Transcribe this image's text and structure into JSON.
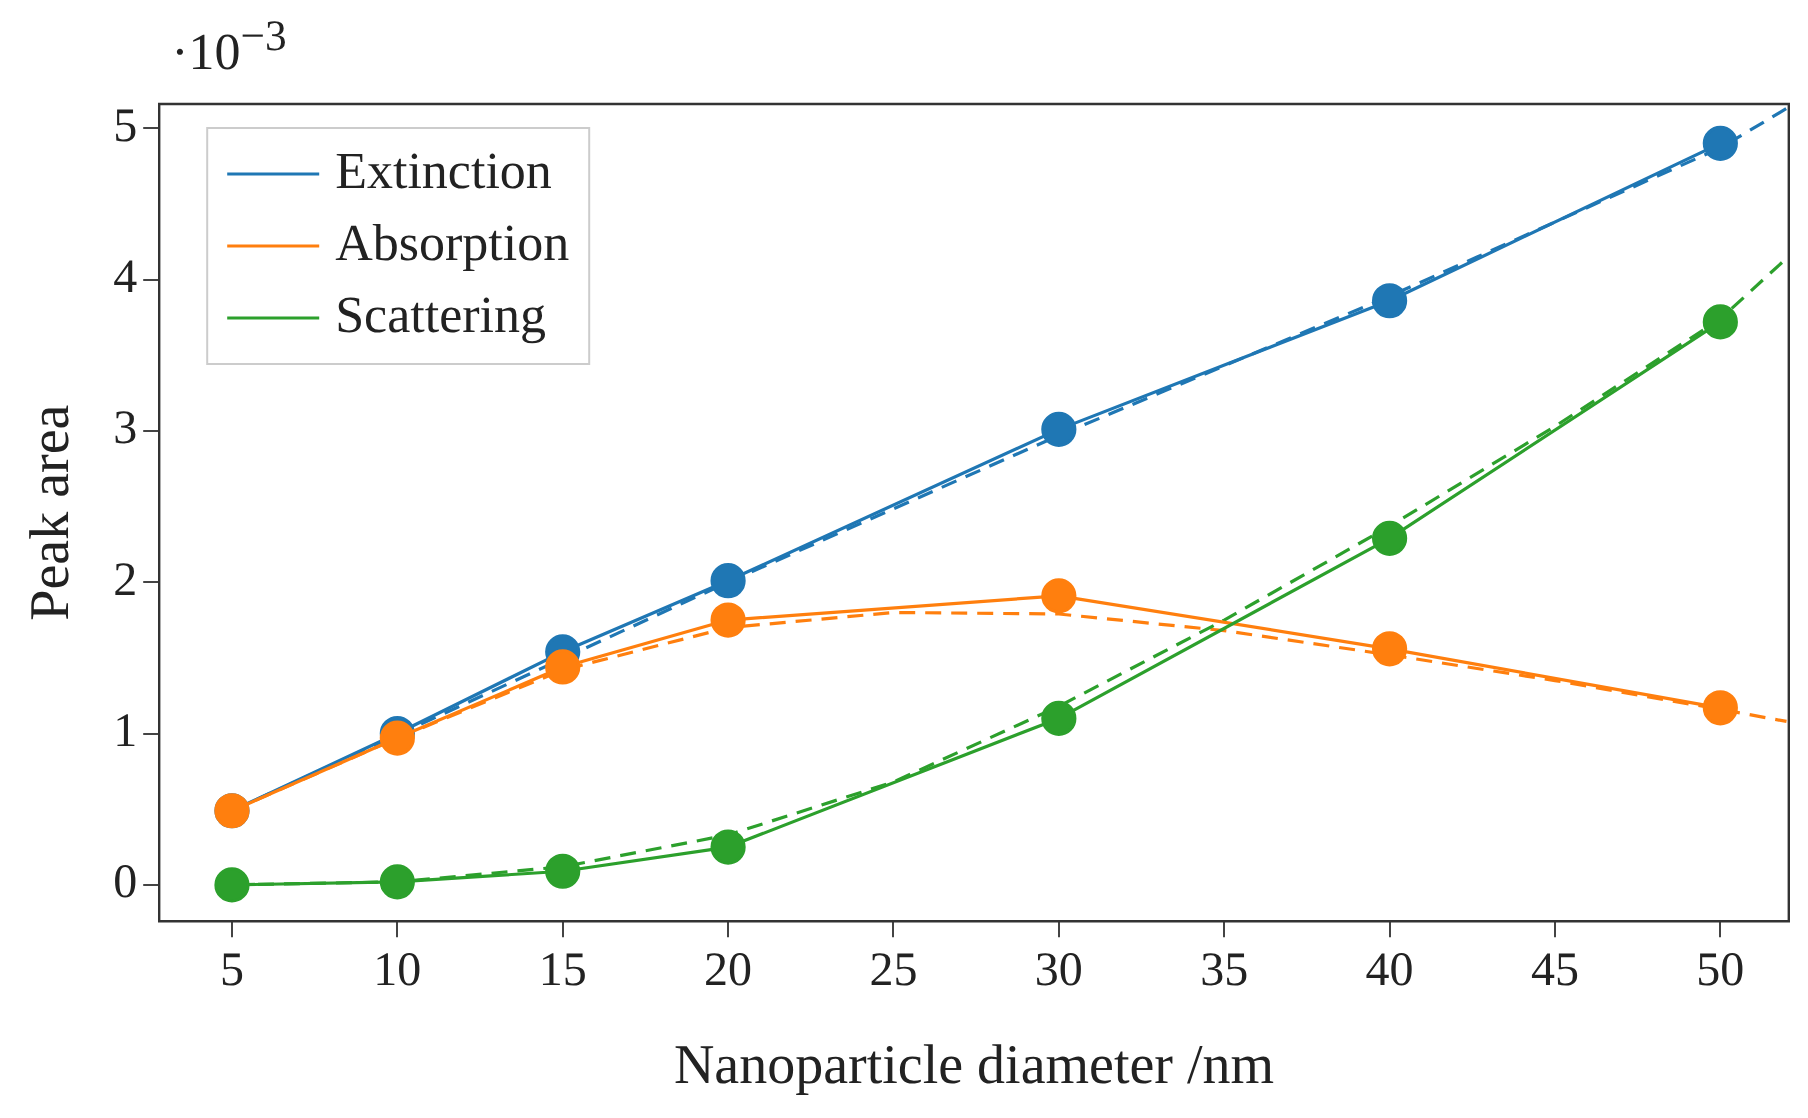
{
  "chart_data": {
    "type": "line",
    "xlabel": "Nanoparticle diameter /nm",
    "ylabel": "Peak area",
    "annotations": [
      "·10$^{−3}$"
    ],
    "x": [
      5,
      10,
      15,
      20,
      30,
      40,
      50
    ],
    "xlim": [
      2.8,
      52.07
    ],
    "xticks": [
      5,
      10,
      15,
      20,
      25,
      30,
      35,
      40,
      45,
      50
    ],
    "ylim": [
      -0.24,
      5.16
    ],
    "yticks": [
      0,
      1,
      2,
      3,
      4,
      5
    ],
    "grid": false,
    "legend": "top left",
    "marker": "circle",
    "line_style": "solid",
    "series": [
      {
        "name": "Extinction",
        "color": "#1f77b4",
        "values": [
          0.49,
          1.0,
          1.54,
          2.01,
          3.01,
          3.86,
          4.9
        ]
      },
      {
        "name": "Absorption",
        "color": "#ff7f0e",
        "values": [
          0.49,
          0.97,
          1.44,
          1.75,
          1.91,
          1.56,
          1.17
        ]
      },
      {
        "name": "Scattering",
        "color": "#2ca02c",
        "values": [
          0,
          0.02,
          0.09,
          0.25,
          1.1,
          2.29,
          3.72
        ]
      },
      {
        "type": "line",
        "color": "#1f77b4",
        "marker": "none",
        "line_style": "dashed",
        "x": [
          5,
          10,
          20,
          30,
          40,
          50,
          52
        ],
        "values": [
          0.49,
          0.99,
          2.0,
          2.97,
          3.89,
          4.87,
          5.13
        ]
      },
      {
        "type": "line",
        "color": "#ff7f0e",
        "marker": "none",
        "line_style": "dashed",
        "x": [
          5,
          10,
          15,
          20,
          25,
          30,
          35,
          40,
          45,
          50,
          52
        ],
        "values": [
          0.49,
          0.97,
          1.42,
          1.7,
          1.8,
          1.79,
          1.68,
          1.52,
          1.35,
          1.16,
          1.08
        ]
      },
      {
        "type": "line",
        "color": "#2ca02c",
        "marker": "none",
        "line_style": "dashed",
        "x": [
          5,
          10,
          15,
          20,
          25,
          30,
          35,
          40,
          45,
          50,
          52
        ],
        "values": [
          0,
          0.02,
          0.12,
          0.33,
          0.68,
          1.18,
          1.75,
          2.37,
          3.03,
          3.74,
          4.14
        ]
      }
    ]
  }
}
